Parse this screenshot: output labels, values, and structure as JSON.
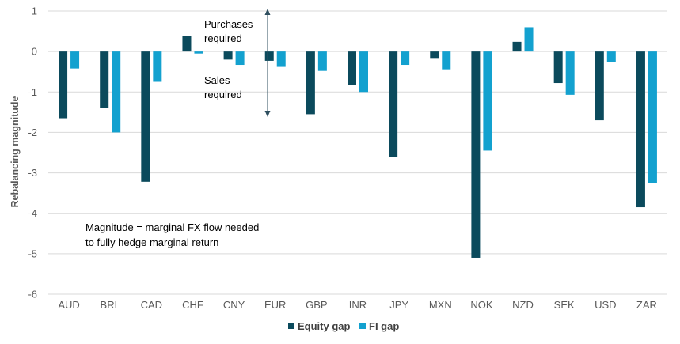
{
  "chart_data": {
    "type": "bar",
    "title": "",
    "xlabel": "",
    "ylabel": "Rebalancing magnitude",
    "ylim": [
      -6,
      1
    ],
    "yticks": [
      1,
      0,
      -1,
      -2,
      -3,
      -4,
      -5,
      -6
    ],
    "grid": true,
    "legend_position": "bottom-center",
    "categories": [
      "AUD",
      "BRL",
      "CAD",
      "CHF",
      "CNY",
      "EUR",
      "GBP",
      "INR",
      "JPY",
      "MXN",
      "NOK",
      "NZD",
      "SEK",
      "USD",
      "ZAR"
    ],
    "series": [
      {
        "name": "Equity gap",
        "color": "#0b4a5c",
        "values": [
          -1.65,
          -1.4,
          -3.22,
          0.38,
          -0.2,
          -0.23,
          -1.55,
          -0.82,
          -2.6,
          -0.16,
          -5.1,
          0.24,
          -0.78,
          -1.7,
          -3.85
        ]
      },
      {
        "name": "FI gap",
        "color": "#13a1cf",
        "values": [
          -0.42,
          -2.0,
          -0.75,
          -0.05,
          -0.33,
          -0.38,
          -0.48,
          -1.0,
          -0.33,
          -0.44,
          -2.45,
          0.6,
          -1.07,
          -0.27,
          -3.25
        ]
      }
    ],
    "annotations": {
      "purchases": "Purchases required",
      "sales": "Sales required",
      "note_line1": "Magnitude = marginal FX flow needed",
      "note_line2": "to fully hedge marginal return"
    }
  }
}
